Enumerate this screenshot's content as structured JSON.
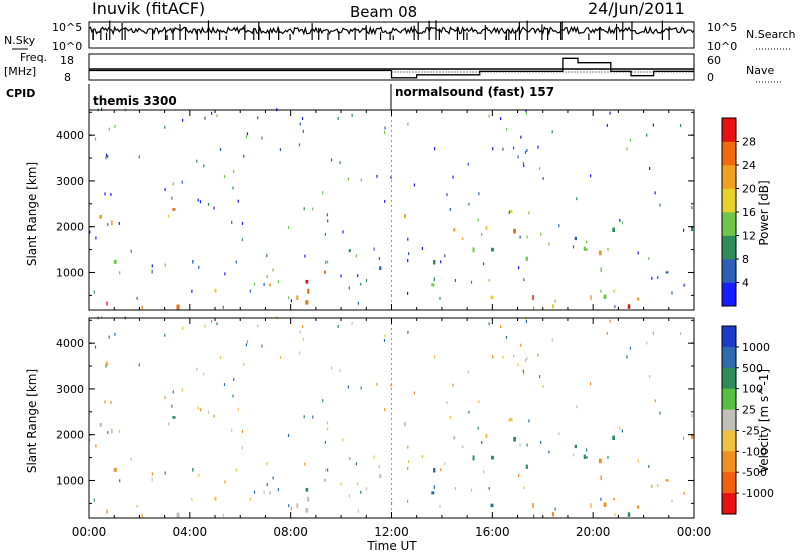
{
  "header": {
    "station": "Inuvik (fitACF)",
    "beam": "Beam 08",
    "date": "24/Jun/2011"
  },
  "strip_noise": {
    "left_label": "N.Sky",
    "right_label": "N.Search",
    "left_ticks": [
      "10^5",
      "10^0"
    ],
    "right_ticks": [
      "10^5",
      "10^0"
    ]
  },
  "strip_freq": {
    "left_label_1": "Freq.",
    "left_label_2": "[MHz]",
    "right_label": "Nave",
    "left_ticks": [
      "18",
      "8"
    ],
    "right_ticks": [
      "60",
      "0"
    ]
  },
  "cpid": {
    "label": "CPID",
    "modes": [
      {
        "name": "themis 3300",
        "start_hour": 0
      },
      {
        "name": "normalsound (fast) 157",
        "start_hour": 12
      }
    ]
  },
  "xaxis": {
    "label": "Time UT",
    "ticks": [
      "00:00",
      "04:00",
      "08:00",
      "12:00",
      "16:00",
      "20:00",
      "00:00"
    ],
    "range_hours": [
      0,
      24
    ]
  },
  "power_panel": {
    "ylabel": "Slant Range [km]",
    "yticks": [
      "1000",
      "2000",
      "3000",
      "4000"
    ],
    "colorbar_label": "Power [dB]",
    "colorbar_ticks": [
      "4",
      "8",
      "12",
      "16",
      "20",
      "24",
      "28"
    ],
    "colors": [
      "#1a1aff",
      "#2c5fb8",
      "#2e8c5a",
      "#6fc64a",
      "#e6d22a",
      "#f0a020",
      "#f06a10",
      "#e81010"
    ]
  },
  "velocity_panel": {
    "ylabel": "Slant Range [km]",
    "yticks": [
      "1000",
      "2000",
      "3000",
      "4000"
    ],
    "colorbar_label": "Velocity [m s^-1]",
    "colorbar_ticks": [
      "1000",
      "500",
      "100",
      "25",
      "-25",
      "-100",
      "-500",
      "-1000"
    ],
    "colors": [
      "#1a3cc8",
      "#2e6ab0",
      "#2e8c5a",
      "#56c040",
      "#c0c0b8",
      "#f0c040",
      "#f09020",
      "#f06010",
      "#e81010"
    ]
  },
  "chart_data": {
    "type": "heatmap",
    "title": "Inuvik (fitACF)",
    "xlabel": "Time UT",
    "ylabel": "Slant Range [km]",
    "xlim_hours": [
      0,
      24
    ],
    "ylim_km": [
      180,
      4550
    ],
    "echo_regions": [
      {
        "t0": 0.2,
        "t1": 2.0,
        "r0": 200,
        "r1": 700,
        "power": 28,
        "velocity": -300
      },
      {
        "t0": 0.2,
        "t1": 1.2,
        "r0": 900,
        "r1": 1400,
        "power": 12,
        "velocity": -200
      },
      {
        "t0": 0.3,
        "t1": 6.3,
        "r0": 1850,
        "r1": 2500,
        "power": 20,
        "velocity": 0
      },
      {
        "t0": 1.0,
        "t1": 4.5,
        "r0": 900,
        "r1": 1300,
        "power": 10,
        "velocity": 50
      },
      {
        "t0": 4.0,
        "t1": 6.0,
        "r0": 500,
        "r1": 800,
        "power": 16,
        "velocity": -50
      },
      {
        "t0": 6.2,
        "t1": 10.5,
        "r0": 250,
        "r1": 1300,
        "power": 26,
        "velocity": 10
      },
      {
        "t0": 8.0,
        "t1": 11.5,
        "r0": 200,
        "r1": 500,
        "power": 26,
        "velocity": 0
      },
      {
        "t0": 10.0,
        "t1": 11.6,
        "r0": 1000,
        "r1": 1900,
        "power": 8,
        "velocity": 0
      },
      {
        "t0": 12.1,
        "t1": 17.5,
        "r0": 1500,
        "r1": 2500,
        "power": 22,
        "velocity": 0
      },
      {
        "t0": 12.0,
        "t1": 16.0,
        "r0": 350,
        "r1": 1300,
        "power": 16,
        "velocity": 200
      },
      {
        "t0": 13.5,
        "t1": 16.0,
        "r0": 500,
        "r1": 900,
        "power": 26,
        "velocity": 150
      },
      {
        "t0": 15.0,
        "t1": 21.0,
        "r0": 1000,
        "r1": 2000,
        "power": 10,
        "velocity": 60
      },
      {
        "t0": 17.5,
        "t1": 22.0,
        "r0": 200,
        "r1": 800,
        "power": 24,
        "velocity": -300
      },
      {
        "t0": 20.0,
        "t1": 24.0,
        "r0": 300,
        "r1": 1400,
        "power": 16,
        "velocity": -400
      },
      {
        "t0": 22.5,
        "t1": 24.0,
        "r0": 800,
        "r1": 2000,
        "power": 12,
        "velocity": -300
      },
      {
        "t0": 0.0,
        "t1": 24.0,
        "r0": 180,
        "r1": 300,
        "power": 28,
        "velocity": 0
      }
    ],
    "sky_noise_log_baseline": 0.8,
    "freq_mhz_baseline": 11,
    "nave_steps": [
      {
        "t0": 0,
        "t1": 12,
        "value": 22
      },
      {
        "t0": 12,
        "t1": 13,
        "value": 5
      },
      {
        "t0": 13,
        "t1": 15.5,
        "value": 12
      },
      {
        "t0": 15.5,
        "t1": 18.8,
        "value": 20
      },
      {
        "t0": 18.8,
        "t1": 19.4,
        "value": 50
      },
      {
        "t0": 19.4,
        "t1": 20.7,
        "value": 40
      },
      {
        "t0": 20.7,
        "t1": 21.5,
        "value": 20
      },
      {
        "t0": 21.5,
        "t1": 22.4,
        "value": 10
      },
      {
        "t0": 22.4,
        "t1": 24,
        "value": 20
      }
    ]
  }
}
